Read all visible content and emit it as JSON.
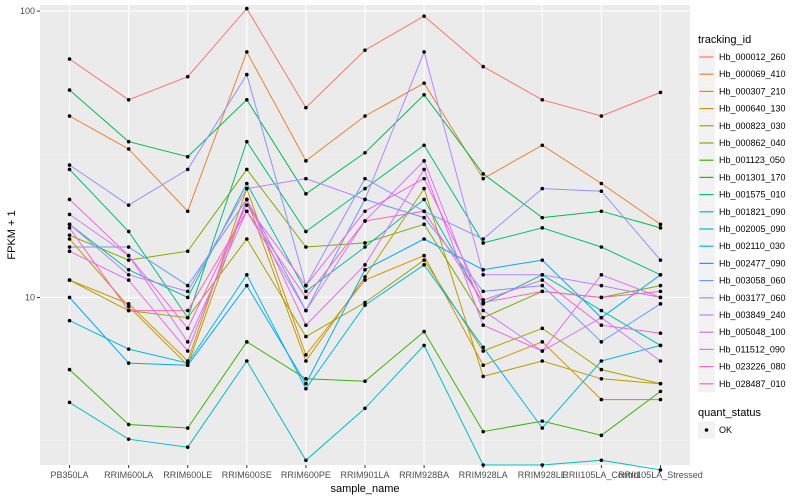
{
  "chart_data": {
    "type": "line",
    "xlabel": "sample_name",
    "ylabel": "FPKM + 1",
    "y_scale": "log10",
    "ylim": [
      2.6,
      105
    ],
    "y_ticks": [
      10,
      100
    ],
    "y_tick_labels": [
      "10",
      "100"
    ],
    "grid": true,
    "legend_position": "right",
    "categories": [
      "PB350LA",
      "RRIM600LA",
      "RRIM600LE",
      "RRIM600SE",
      "RRIM600PE",
      "RRIM901LA",
      "RRIM928BA",
      "RRIM928LA",
      "RRIM928LE",
      "RRII105LA_Control",
      "RRII105LA_Stressed"
    ],
    "legend_title": "tracking_id",
    "series": [
      {
        "name": "Hb_000012_260",
        "color": "#F8766D",
        "values": [
          68,
          49,
          59,
          102,
          46,
          73,
          96,
          64,
          49,
          43,
          52
        ]
      },
      {
        "name": "Hb_000069_410",
        "color": "#EA8331",
        "values": [
          43,
          33,
          20,
          72,
          30,
          43,
          56,
          26,
          34,
          25,
          18
        ]
      },
      {
        "name": "Hb_000307_210",
        "color": "#D89000",
        "values": [
          11.5,
          9.5,
          6,
          24,
          6.3,
          11.5,
          14,
          5.8,
          7,
          4.4,
          4.4
        ]
      },
      {
        "name": "Hb_000640_130",
        "color": "#C09B00",
        "values": [
          16,
          9.3,
          5.8,
          22,
          6,
          11.8,
          24,
          5.3,
          6,
          5.2,
          5
        ]
      },
      {
        "name": "Hb_000823_030",
        "color": "#A3A500",
        "values": [
          11.5,
          9,
          8.5,
          16,
          7.3,
          9.6,
          13.5,
          6.5,
          7.8,
          5.6,
          5
        ]
      },
      {
        "name": "Hb_000862_040",
        "color": "#7CAE00",
        "values": [
          16.5,
          13.5,
          14.5,
          28,
          15,
          15.5,
          18,
          8.5,
          10.5,
          10,
          11
        ]
      },
      {
        "name": "Hb_001123_050",
        "color": "#39B600",
        "values": [
          5.6,
          3.6,
          3.5,
          7,
          5.2,
          5.1,
          7.6,
          3.4,
          3.7,
          3.3,
          4.7
        ]
      },
      {
        "name": "Hb_001301_170",
        "color": "#00BB4E",
        "values": [
          53,
          35,
          31,
          49,
          23,
          32,
          51,
          27,
          19,
          20,
          17.5
        ]
      },
      {
        "name": "Hb_001575_010",
        "color": "#00BF7D",
        "values": [
          28,
          17,
          8.5,
          35,
          17,
          24,
          34,
          15.5,
          17.5,
          15,
          12
        ]
      },
      {
        "name": "Hb_001821_090",
        "color": "#00C1A3",
        "values": [
          18,
          12.5,
          10,
          25,
          10.5,
          15,
          22,
          9.5,
          12,
          9,
          6.8
        ]
      },
      {
        "name": "Hb_002005_090",
        "color": "#00BFC4",
        "values": [
          4.3,
          3.2,
          3,
          6,
          2.7,
          4.1,
          6.8,
          2.6,
          2.6,
          2.7,
          2.5
        ]
      },
      {
        "name": "Hb_002110_030",
        "color": "#00B8E7",
        "values": [
          8.3,
          6.6,
          5.9,
          12,
          4.8,
          9.4,
          13,
          6.7,
          3.5,
          6,
          6.8
        ]
      },
      {
        "name": "Hb_002477_090",
        "color": "#00A9FF",
        "values": [
          10,
          5.9,
          5.8,
          11,
          5,
          12.5,
          16,
          12.5,
          13.5,
          8.5,
          12
        ]
      },
      {
        "name": "Hb_003058_060",
        "color": "#619CFF",
        "values": [
          15,
          15,
          11,
          22,
          9,
          22,
          19,
          10.5,
          11,
          7,
          9.5
        ]
      },
      {
        "name": "Hb_003177_060",
        "color": "#9590FF",
        "values": [
          29,
          21,
          28,
          60,
          11,
          26,
          20,
          16,
          24,
          23.5,
          13.5
        ]
      },
      {
        "name": "Hb_003849_240",
        "color": "#B983FF",
        "values": [
          18,
          12,
          10.5,
          24,
          26,
          22,
          72,
          12,
          12,
          11,
          10
        ]
      },
      {
        "name": "Hb_005048_100",
        "color": "#D575FE",
        "values": [
          19.5,
          14,
          7,
          20,
          9,
          18.5,
          30,
          9,
          6.5,
          8.5,
          6
        ]
      },
      {
        "name": "Hb_011512_090",
        "color": "#E76BF3",
        "values": [
          14.5,
          11.5,
          6.5,
          22,
          8,
          13,
          28,
          8,
          6.5,
          12,
          10
        ]
      },
      {
        "name": "Hb_023226_080",
        "color": "#F564E3",
        "values": [
          22,
          14,
          7.8,
          21,
          11,
          20,
          26,
          9.8,
          11.5,
          8,
          7.5
        ]
      },
      {
        "name": "Hb_028487_010",
        "color": "#FF61C3",
        "values": [
          17.5,
          9,
          9,
          20,
          10,
          18.5,
          20,
          9.6,
          10.5,
          10,
          10.5
        ]
      }
    ],
    "second_legend": {
      "title": "quant_status",
      "items": [
        "OK"
      ]
    }
  }
}
